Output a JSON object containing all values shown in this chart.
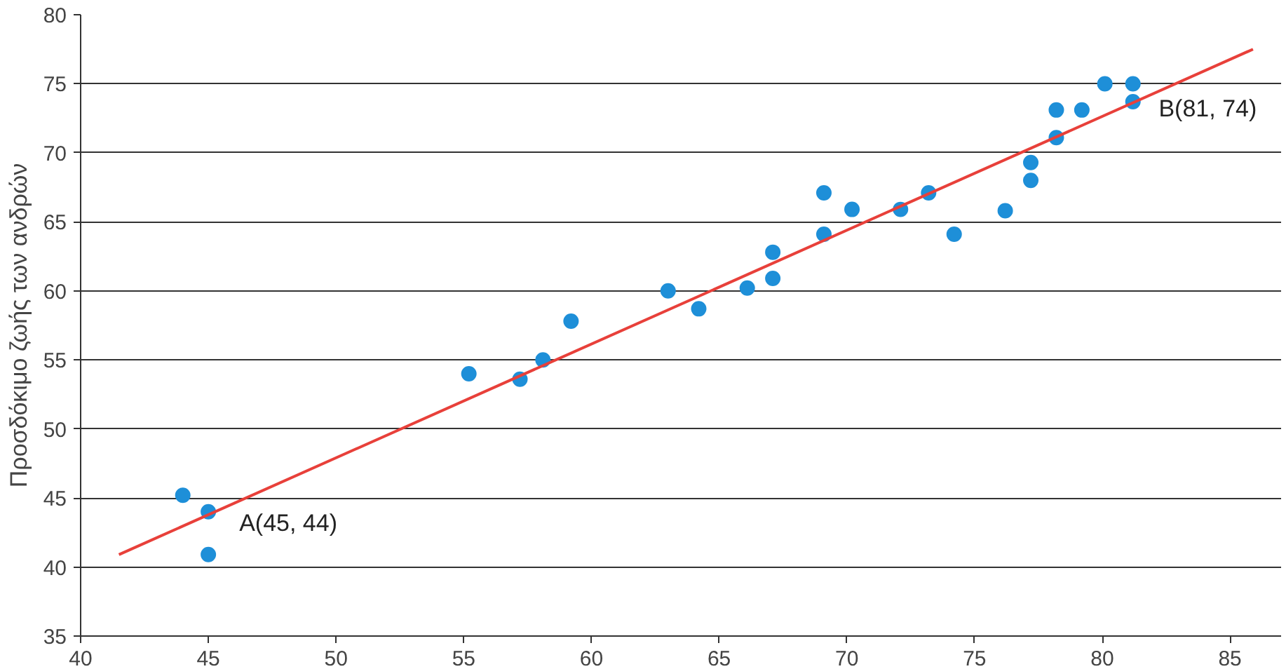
{
  "chart_data": {
    "type": "scatter",
    "ylabel": "Προσδόκιμο ζωής των ανδρών",
    "xlim": [
      40,
      87
    ],
    "ylim": [
      35,
      80
    ],
    "xticks": [
      40,
      45,
      50,
      55,
      60,
      65,
      70,
      75,
      80,
      85
    ],
    "yticks": [
      35,
      40,
      45,
      50,
      55,
      60,
      65,
      70,
      75,
      80
    ],
    "grid": "y",
    "series": [
      {
        "marker": "circle",
        "color": "#1e8fd8",
        "x": [
          44,
          45,
          45,
          55.2,
          57.2,
          58.1,
          59.2,
          63,
          64.2,
          66.1,
          67.1,
          67.1,
          69.1,
          69.1,
          70.2,
          72.1,
          73.2,
          74.2,
          76.2,
          77.2,
          77.2,
          78.2,
          78.2,
          79.2,
          80.1,
          81.2,
          81.2
        ],
        "values": [
          45.2,
          44,
          40.9,
          54,
          53.6,
          55,
          57.8,
          60,
          58.7,
          60.2,
          62.8,
          60.9,
          67.1,
          64.1,
          65.9,
          65.9,
          67.1,
          64.1,
          65.8,
          69.3,
          68,
          73.1,
          71.1,
          73.1,
          75,
          75,
          73.7
        ]
      },
      {
        "type": "line",
        "marker": "none",
        "color": "#e8403a",
        "x": [
          41.5,
          85.9
        ],
        "values": [
          40.9,
          77.5
        ]
      }
    ],
    "annotations": [
      {
        "text": "A(45, 44)",
        "x": 45,
        "y": 44
      },
      {
        "text": "B(81, 74)",
        "x": 81,
        "y": 74
      }
    ]
  }
}
